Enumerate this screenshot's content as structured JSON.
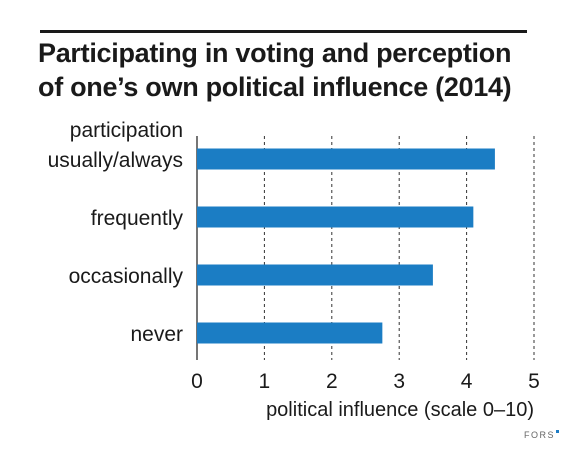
{
  "chart_data": {
    "type": "bar",
    "orientation": "horizontal",
    "title": "Participating in voting and perception of one’s own political influence (2014)",
    "category_axis_label": "participation",
    "categories": [
      "usually/always",
      "frequently",
      "occasionally",
      "never"
    ],
    "values": [
      4.42,
      4.1,
      3.5,
      2.75
    ],
    "xlabel": "political influence (scale 0–10)",
    "xlim": [
      0,
      5
    ],
    "xticks": [
      "0",
      "1",
      "2",
      "3",
      "4",
      "5"
    ],
    "grid": "vertical-dashed",
    "bar_color": "#1b7dc4"
  },
  "brand": {
    "name": "FORS"
  }
}
